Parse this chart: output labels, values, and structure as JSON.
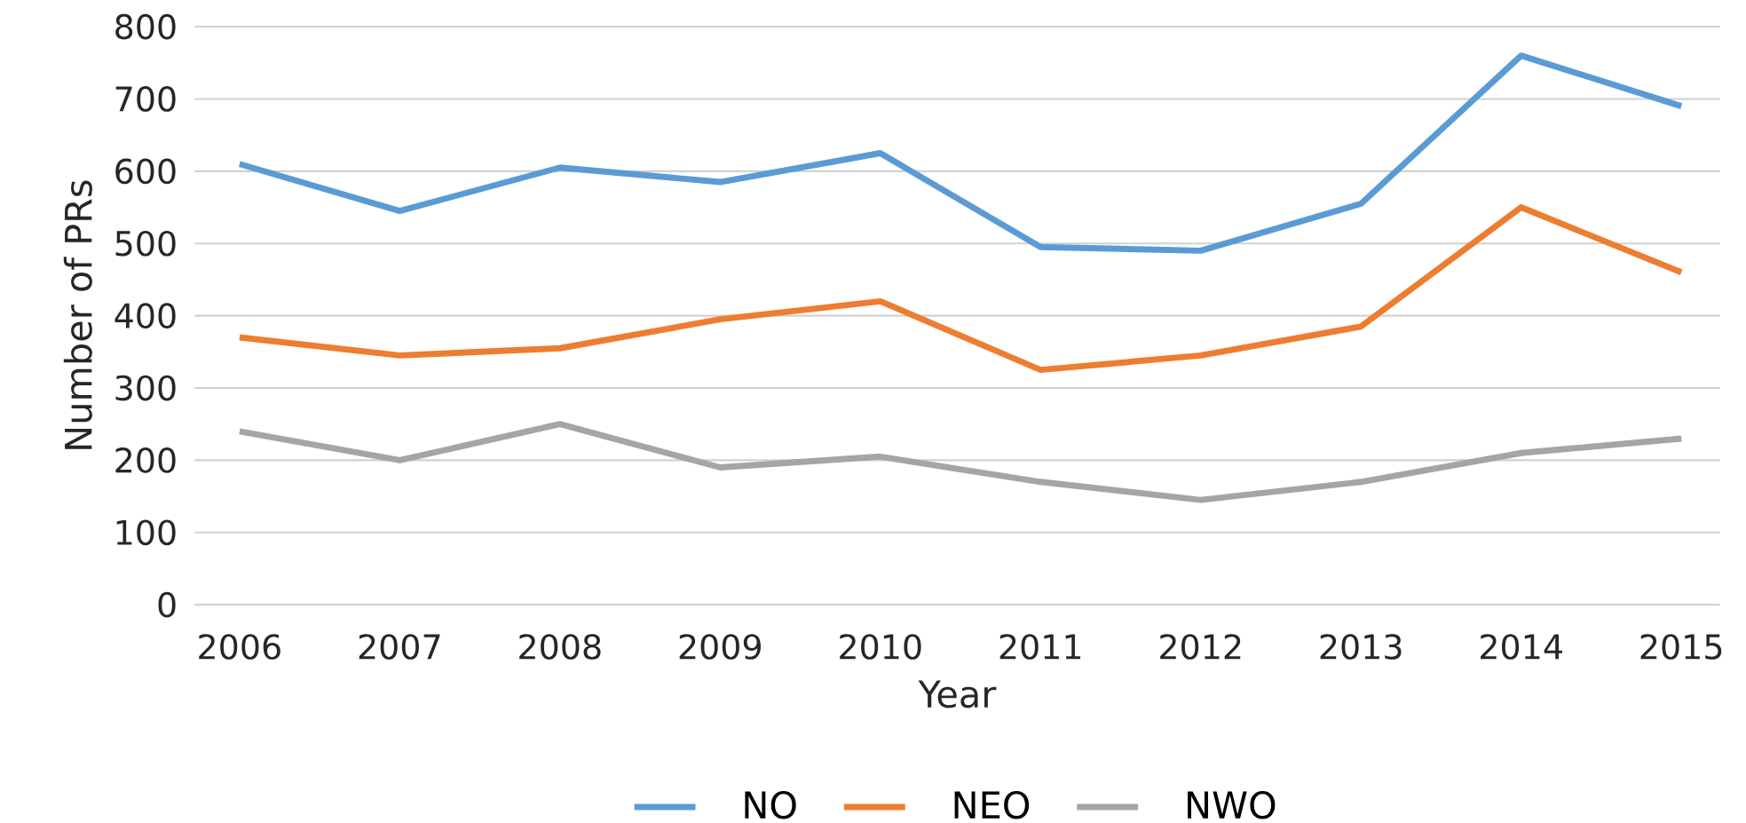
{
  "chart_data": {
    "type": "line",
    "xlabel": "Year",
    "ylabel": "Number of PRs",
    "categories": [
      "2006",
      "2007",
      "2008",
      "2009",
      "2010",
      "2011",
      "2012",
      "2013",
      "2014",
      "2015"
    ],
    "series": [
      {
        "name": "NO",
        "color": "#5b9bd5",
        "values": [
          610,
          545,
          605,
          585,
          625,
          495,
          490,
          555,
          760,
          690
        ]
      },
      {
        "name": "NEO",
        "color": "#ed7d31",
        "values": [
          370,
          345,
          355,
          395,
          420,
          325,
          345,
          385,
          550,
          460
        ]
      },
      {
        "name": "NWO",
        "color": "#a5a5a5",
        "values": [
          240,
          200,
          250,
          190,
          205,
          170,
          145,
          170,
          210,
          230
        ]
      }
    ],
    "ylim": [
      0,
      800
    ],
    "yticks": [
      0,
      100,
      200,
      300,
      400,
      500,
      600,
      700,
      800
    ],
    "grid": "y",
    "legend": "bottom",
    "marker": "none",
    "line_style": "solid"
  }
}
